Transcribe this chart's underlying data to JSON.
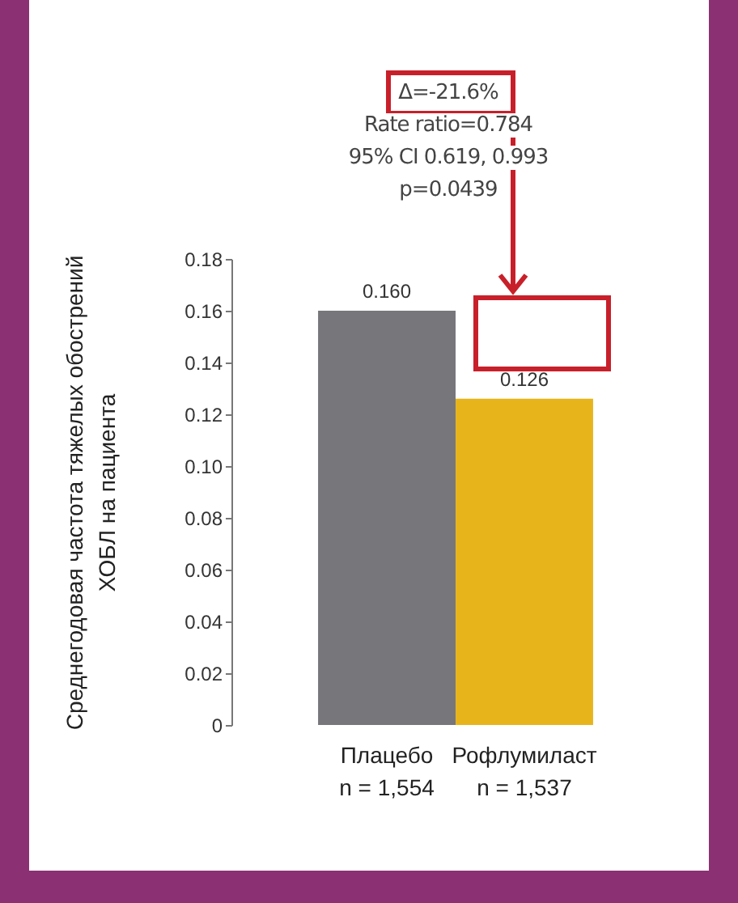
{
  "chart_data": {
    "type": "bar",
    "categories": [
      "Плацебо\nn = 1,554",
      "Рофлумиласт\nn = 1,537"
    ],
    "values": [
      0.16,
      0.126
    ],
    "colors": [
      "#77777b",
      "#e8b41c"
    ],
    "value_labels": [
      "0.160",
      "0.126"
    ],
    "ylabel": "Среднегодовая частота тяжелых обострений\nХОБЛ на пациента",
    "ylim": [
      0,
      0.18
    ],
    "yticks": [
      0,
      0.02,
      0.04,
      0.06,
      0.08,
      {
        "value": 0.1,
        "label": "0.10"
      },
      0.12,
      0.14,
      0.16,
      0.18
    ],
    "annotations": [
      "Δ=-21.6%",
      "Rate ratio=0.784",
      "95% CI 0.619, 0.993",
      "p=0.0439"
    ]
  }
}
